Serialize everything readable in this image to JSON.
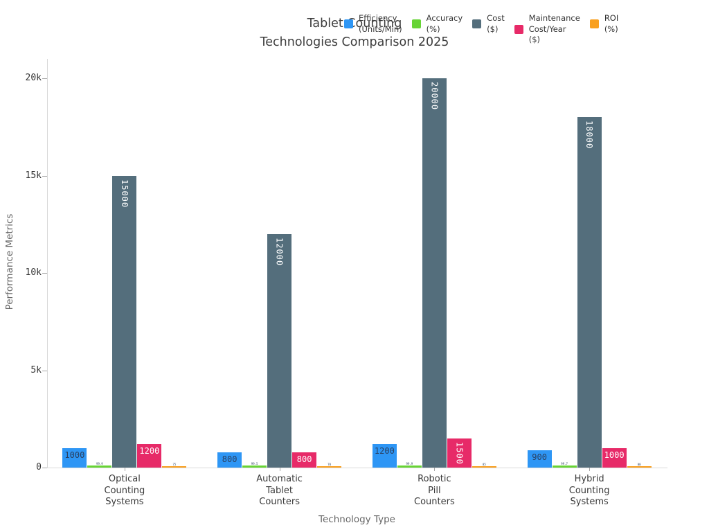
{
  "title": {
    "line1": "Tablet Counting",
    "line2": "Technologies Comparison 2025"
  },
  "axes": {
    "x_title": "Technology Type",
    "y_title": "Performance Metrics",
    "y_ticks": [
      {
        "value": 0,
        "label": "0"
      },
      {
        "value": 5000,
        "label": "5k"
      },
      {
        "value": 10000,
        "label": "10k"
      },
      {
        "value": 15000,
        "label": "15k"
      },
      {
        "value": 20000,
        "label": "20k"
      }
    ]
  },
  "chart_data": {
    "type": "bar",
    "title": "Tablet Counting Technologies Comparison 2025",
    "xlabel": "Technology Type",
    "ylabel": "Performance Metrics",
    "ylim": [
      0,
      20000
    ],
    "grid": false,
    "legend_position": "top-right-horizontal",
    "background": "#ffffff",
    "categories": [
      "Optical Counting Systems",
      "Automatic Tablet Counters",
      "Robotic Pill Counters",
      "Hybrid Counting Systems"
    ],
    "categories_display": [
      "Optical\nCounting\nSystems",
      "Automatic\nTablet\nCounters",
      "Robotic\nPill\nCounters",
      "Hybrid\nCounting\nSystems"
    ],
    "series": [
      {
        "name": "Efficiency (Units/Min)",
        "legend_label": "Efficiency\n(Units/Min)",
        "color": "#2e96f5",
        "label_style": "inside-dark",
        "values": [
          1000,
          800,
          1200,
          900
        ]
      },
      {
        "name": "Accuracy (%)",
        "legend_label": "Accuracy\n(%)",
        "color": "#67d435",
        "label_style": "micro",
        "values": [
          99.9,
          99.5,
          99.9,
          99.7
        ]
      },
      {
        "name": "Cost ($)",
        "legend_label": "Cost\n($)",
        "color": "#546e7c",
        "label_style": "inside-white",
        "values": [
          15000,
          12000,
          20000,
          18000
        ]
      },
      {
        "name": "Maintenance Cost/Year ($)",
        "legend_label": "Maintenance\nCost/Year\n($)",
        "color": "#e72a68",
        "label_style": "inside-white",
        "values": [
          1200,
          800,
          1500,
          1000
        ]
      },
      {
        "name": "ROI (%)",
        "legend_label": "ROI\n(%)",
        "color": "#f9a01f",
        "label_style": "micro",
        "values": [
          75,
          70,
          85,
          80
        ]
      }
    ]
  }
}
